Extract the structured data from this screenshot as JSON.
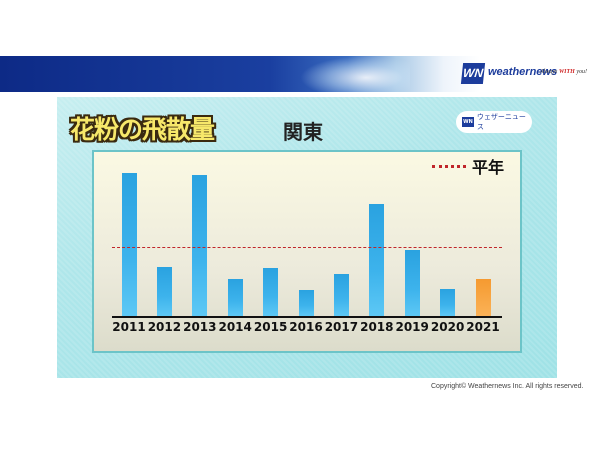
{
  "header": {
    "brand_mark": "WN",
    "brand_name": "weathernews",
    "tagline_prefix": "Always ",
    "tagline_emph": "WITH",
    "tagline_suffix": " you!"
  },
  "panel": {
    "title": "花粉の飛散量",
    "region": "関東",
    "badge_mark": "WN",
    "badge_text": "ウェザーニュース"
  },
  "footer": {
    "copyright": "Copyright© Weathernews Inc. All rights reserved."
  },
  "colors": {
    "bar": "#2aa2e0",
    "bar_current": "#f59a30",
    "average_line": "#c0262a",
    "banner": "#0d2a86",
    "panel_bg": "#aee6ea"
  },
  "chart_data": {
    "type": "bar",
    "title": "花粉の飛散量 関東",
    "xlabel": "",
    "ylabel": "",
    "categories": [
      "2011",
      "2012",
      "2013",
      "2014",
      "2015",
      "2016",
      "2017",
      "2018",
      "2019",
      "2020",
      "2021"
    ],
    "values": [
      143,
      49,
      141,
      37,
      48,
      26,
      42,
      112,
      66,
      27,
      37
    ],
    "value_units": "relative (px height; no y-axis shown)",
    "highlight": {
      "category": "2021",
      "color": "#f59a30",
      "note": "current year (forecast)"
    },
    "reference_lines": [
      {
        "label": "平年",
        "value": 69,
        "style": "dotted",
        "color": "#c0262a"
      }
    ],
    "legend": [
      {
        "label": "平年",
        "marker": "dotted-line"
      }
    ],
    "legend_position": "top-right",
    "grid": false,
    "ylim": [
      0,
      150
    ]
  }
}
